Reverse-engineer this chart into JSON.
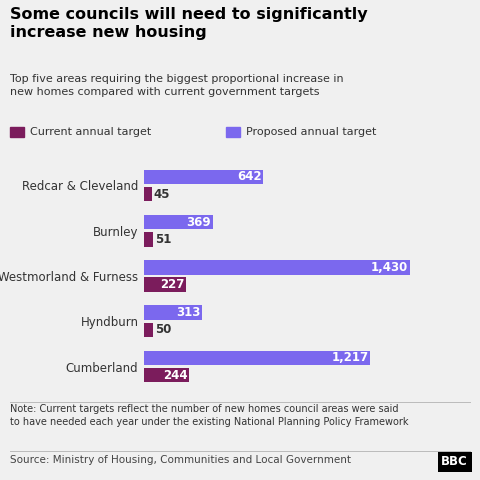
{
  "title": "Some councils will need to significantly\nincrease new housing",
  "subtitle": "Top five areas requiring the biggest proportional increase in\nnew homes compared with current government targets",
  "categories": [
    "Redcar & Cleveland",
    "Burnley",
    "Westmorland & Furness",
    "Hyndburn",
    "Cumberland"
  ],
  "proposed": [
    642,
    369,
    1430,
    313,
    1217
  ],
  "current": [
    45,
    51,
    227,
    50,
    244
  ],
  "proposed_color": "#7B68EE",
  "current_color": "#7B1C5C",
  "background_color": "#F0F0F0",
  "proposed_label": "Proposed annual target",
  "current_label": "Current annual target",
  "note": "Note: Current targets reflect the number of new homes council areas were said\nto have needed each year under the existing National Planning Policy Framework",
  "source": "Source: Ministry of Housing, Communities and Local Government",
  "bar_height": 0.32,
  "xlim": [
    0,
    1600
  ]
}
